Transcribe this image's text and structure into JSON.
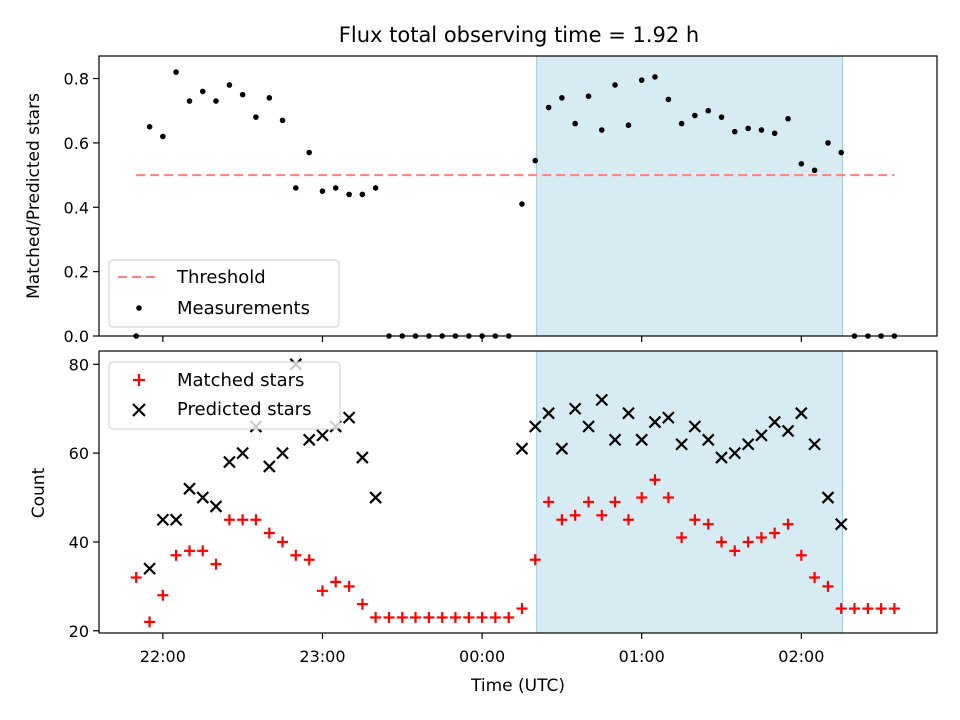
{
  "figure": {
    "title": "Flux total observing time = 1.92 h",
    "xlabel": "Time (UTC)"
  },
  "chart_data": [
    {
      "type": "scatter",
      "name": "top-panel",
      "ylabel": "Matched/Predicted stars",
      "x_unit": "hours since 21:00 UTC (axis ticks printed as clock times)",
      "xlim": [
        21.6,
        26.85
      ],
      "ylim": [
        0.0,
        0.87
      ],
      "x_ticks": [
        22,
        23,
        24,
        25,
        26
      ],
      "x_tick_labels": [
        "22:00",
        "23:00",
        "00:00",
        "01:00",
        "02:00"
      ],
      "y_ticks": [
        0.0,
        0.2,
        0.4,
        0.6,
        0.8
      ],
      "y_tick_labels": [
        "0.0",
        "0.2",
        "0.4",
        "0.6",
        "0.8"
      ],
      "grid": false,
      "legend_position": "lower-left",
      "shaded_interval": {
        "x0": 24.342,
        "x1": 26.258,
        "color": "#add8e6"
      },
      "threshold": {
        "name": "Threshold",
        "y": 0.5,
        "x0": 21.833,
        "x1": 26.583,
        "color": "#ff7f7f",
        "style": "dashed"
      },
      "series": [
        {
          "name": "Measurements",
          "color": "#000000",
          "marker": "dot",
          "x": [
            21.833,
            21.917,
            22.0,
            22.083,
            22.167,
            22.25,
            22.333,
            22.417,
            22.5,
            22.583,
            22.667,
            22.75,
            22.833,
            22.917,
            23.0,
            23.083,
            23.167,
            23.25,
            23.333,
            23.417,
            23.5,
            23.583,
            23.667,
            23.75,
            23.833,
            23.917,
            24.0,
            24.083,
            24.167,
            24.25,
            24.333,
            24.417,
            24.5,
            24.583,
            24.667,
            24.75,
            24.833,
            24.917,
            25.0,
            25.083,
            25.167,
            25.25,
            25.333,
            25.417,
            25.5,
            25.583,
            25.667,
            25.75,
            25.833,
            25.917,
            26.0,
            26.083,
            26.167,
            26.25,
            26.333,
            26.417,
            26.5,
            26.583
          ],
          "y": [
            0.0,
            0.65,
            0.62,
            0.82,
            0.73,
            0.76,
            0.73,
            0.78,
            0.75,
            0.68,
            0.74,
            0.67,
            0.46,
            0.57,
            0.45,
            0.46,
            0.44,
            0.44,
            0.46,
            0.0,
            0.0,
            0.0,
            0.0,
            0.0,
            0.0,
            0.0,
            0.0,
            0.0,
            0.0,
            0.41,
            0.545,
            0.71,
            0.74,
            0.66,
            0.745,
            0.64,
            0.78,
            0.655,
            0.795,
            0.805,
            0.735,
            0.66,
            0.685,
            0.7,
            0.68,
            0.635,
            0.645,
            0.64,
            0.63,
            0.675,
            0.535,
            0.515,
            0.6,
            0.57,
            0.0,
            0.0,
            0.0,
            0.0
          ]
        }
      ]
    },
    {
      "type": "scatter",
      "name": "bottom-panel",
      "ylabel": "Count",
      "x_unit": "hours since 21:00 UTC (axis ticks printed as clock times)",
      "xlim": [
        21.6,
        26.85
      ],
      "ylim": [
        19.5,
        83
      ],
      "x_ticks": [
        22,
        23,
        24,
        25,
        26
      ],
      "x_tick_labels": [
        "22:00",
        "23:00",
        "00:00",
        "01:00",
        "02:00"
      ],
      "y_ticks": [
        20,
        40,
        60,
        80
      ],
      "y_tick_labels": [
        "20",
        "40",
        "60",
        "80"
      ],
      "grid": false,
      "legend_position": "upper-left",
      "shaded_interval": {
        "x0": 24.342,
        "x1": 26.258,
        "color": "#add8e6"
      },
      "series": [
        {
          "name": "Matched stars",
          "color": "#ff0000",
          "marker": "plus",
          "x": [
            21.833,
            21.917,
            22.0,
            22.083,
            22.167,
            22.25,
            22.333,
            22.417,
            22.5,
            22.583,
            22.667,
            22.75,
            22.833,
            22.917,
            23.0,
            23.083,
            23.167,
            23.25,
            23.333,
            23.417,
            23.5,
            23.583,
            23.667,
            23.75,
            23.833,
            23.917,
            24.0,
            24.083,
            24.167,
            24.25,
            24.333,
            24.417,
            24.5,
            24.583,
            24.667,
            24.75,
            24.833,
            24.917,
            25.0,
            25.083,
            25.167,
            25.25,
            25.333,
            25.417,
            25.5,
            25.583,
            25.667,
            25.75,
            25.833,
            25.917,
            26.0,
            26.083,
            26.167,
            26.25,
            26.333,
            26.417,
            26.5,
            26.583
          ],
          "y": [
            32,
            22,
            28,
            37,
            38,
            38,
            35,
            45,
            45,
            45,
            42,
            40,
            37,
            36,
            29,
            31,
            30,
            26,
            23,
            23,
            23,
            23,
            23,
            23,
            23,
            23,
            23,
            23,
            23,
            25,
            36,
            49,
            45,
            46,
            49,
            46,
            49,
            45,
            50,
            54,
            50,
            41,
            45,
            44,
            40,
            38,
            40,
            41,
            42,
            44,
            37,
            32,
            30,
            25,
            25,
            25,
            25,
            25
          ]
        },
        {
          "name": "Predicted stars",
          "color": "#000000",
          "marker": "x",
          "x": [
            21.917,
            22.0,
            22.083,
            22.167,
            22.25,
            22.333,
            22.417,
            22.5,
            22.583,
            22.667,
            22.75,
            22.833,
            22.917,
            23.0,
            23.083,
            23.167,
            23.25,
            23.333,
            24.25,
            24.333,
            24.417,
            24.5,
            24.583,
            24.667,
            24.75,
            24.833,
            24.917,
            25.0,
            25.083,
            25.167,
            25.25,
            25.333,
            25.417,
            25.5,
            25.583,
            25.667,
            25.75,
            25.833,
            25.917,
            26.0,
            26.083,
            26.167,
            26.25
          ],
          "y": [
            34,
            45,
            45,
            52,
            50,
            48,
            58,
            60,
            66,
            57,
            60,
            80,
            63,
            64,
            66,
            68,
            59,
            50,
            61,
            66,
            69,
            61,
            70,
            66,
            72,
            63,
            69,
            63,
            67,
            68,
            62,
            66,
            63,
            59,
            60,
            62,
            64,
            67,
            65,
            69,
            62,
            50,
            44
          ]
        }
      ]
    }
  ]
}
